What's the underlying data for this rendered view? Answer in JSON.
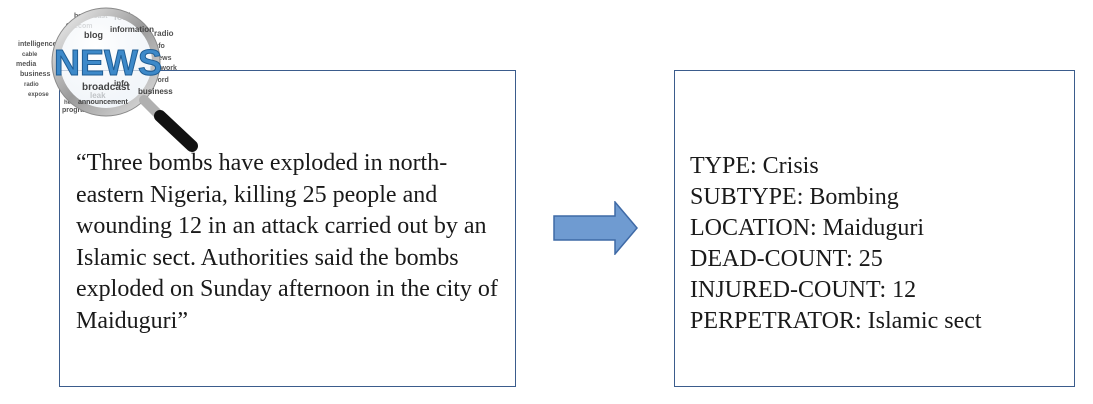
{
  "news_icon": {
    "headline": "NEWS",
    "words": [
      "broadcast",
      "leak",
      "blog",
      "information",
      "radio",
      "intelligence",
      "telecast",
      "news",
      "media",
      "web",
      "word",
      "business",
      "network",
      "info",
      "headlines",
      "program",
      "cable",
      "announcement",
      "expose",
      "telecom"
    ]
  },
  "source_text": "“Three bombs have exploded in north-eastern Nigeria, killing 25 people and wounding 12 in an attack carried out by an Islamic sect. Authorities said the bombs exploded on Sunday afternoon in the city of Maiduguri”",
  "fields": [
    {
      "label": "TYPE",
      "value": "Crisis"
    },
    {
      "label": "SUBTYPE",
      "value": "Bombing"
    },
    {
      "label": "LOCATION",
      "value": "Maiduguri"
    },
    {
      "label": "DEAD-COUNT",
      "value": "25"
    },
    {
      "label": "INJURED-COUNT",
      "value": "12"
    },
    {
      "label": "PERPETRATOR",
      "value": "Islamic sect"
    }
  ],
  "colors": {
    "box_border": "#3b5c8c",
    "arrow_fill": "#6f9bd1",
    "arrow_stroke": "#3f6aa6",
    "news_letters": "#3d89c9"
  }
}
